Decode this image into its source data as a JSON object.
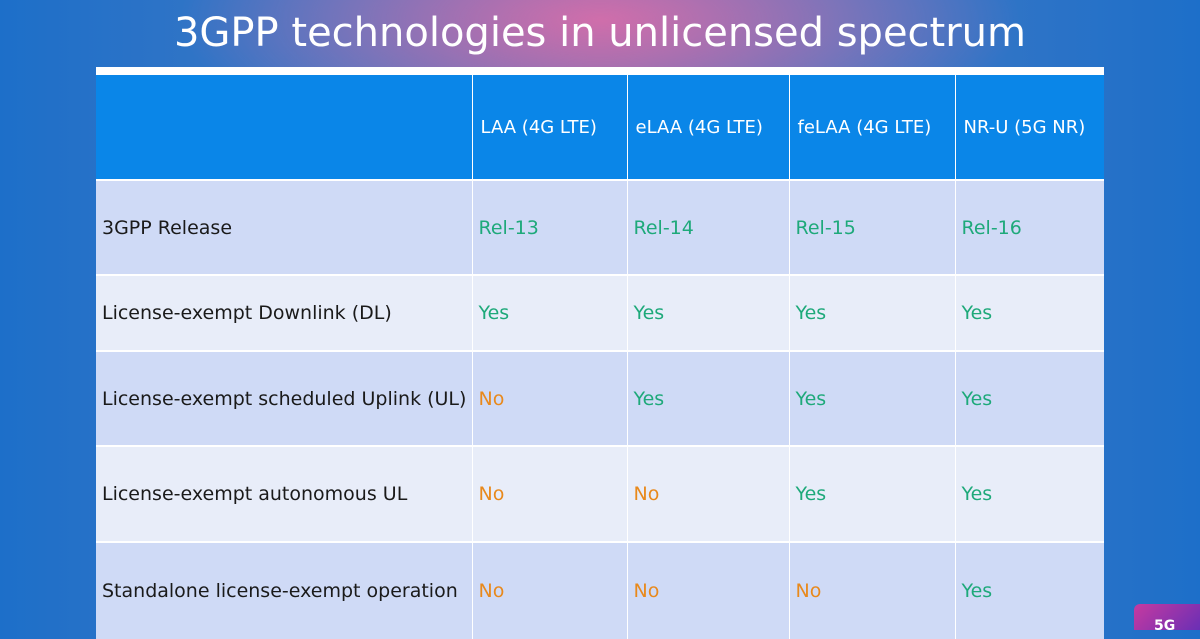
{
  "title": "3GPP technologies in unlicensed spectrum",
  "table": {
    "headers": [
      "",
      "LAA (4G LTE)",
      "eLAA (4G LTE)",
      "feLAA (4G LTE)",
      "NR-U (5G NR)"
    ],
    "rows": [
      [
        "3GPP Release",
        "Rel-13",
        "Rel-14",
        "Rel-15",
        "Rel-16"
      ],
      [
        "License-exempt Downlink (DL)",
        "Yes",
        "Yes",
        "Yes",
        "Yes"
      ],
      [
        "License-exempt scheduled Uplink (UL)",
        "No",
        "Yes",
        "Yes",
        "Yes"
      ],
      [
        "License-exempt autonomous UL",
        "No",
        "No",
        "Yes",
        "Yes"
      ],
      [
        "Standalone license-exempt operation",
        "No",
        "No",
        "No",
        "Yes"
      ]
    ]
  },
  "colors": {
    "header_bg": "#0a86e8",
    "yes": "#1ea97a",
    "no": "#e8891c",
    "row_odd": "#cfdaf6",
    "row_even": "#e8edf9"
  },
  "badge": {
    "label": "5G"
  }
}
